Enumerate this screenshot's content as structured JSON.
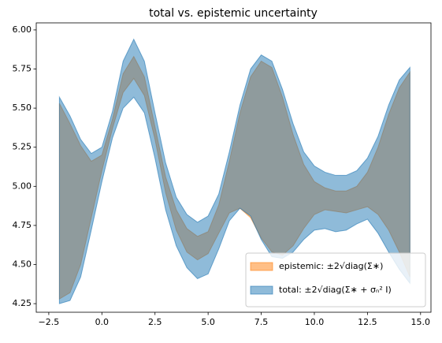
{
  "chart_data": {
    "type": "band",
    "title": "total vs. epistemic uncertainty",
    "x": [
      -2,
      -1.5,
      -1,
      -0.5,
      0,
      0.5,
      1,
      1.5,
      2,
      2.5,
      3,
      3.5,
      4,
      4.5,
      5,
      5.5,
      6,
      6.5,
      7,
      7.5,
      8,
      8.5,
      9,
      9.5,
      10,
      10.5,
      11,
      11.5,
      12,
      12.5,
      13,
      13.5,
      14,
      14.5
    ],
    "series": [
      {
        "name": "epistemic: ±2√diag(Σ∗)",
        "color": "#ff7f0e",
        "upper": [
          5.53,
          5.4,
          5.26,
          5.16,
          5.2,
          5.43,
          5.72,
          5.83,
          5.7,
          5.38,
          5.06,
          4.85,
          4.73,
          4.68,
          4.71,
          4.88,
          5.16,
          5.47,
          5.7,
          5.8,
          5.76,
          5.57,
          5.33,
          5.14,
          5.03,
          4.99,
          4.97,
          4.97,
          5.0,
          5.09,
          5.25,
          5.46,
          5.63,
          5.73
        ],
        "lower": [
          4.28,
          4.32,
          4.5,
          4.8,
          5.1,
          5.37,
          5.6,
          5.69,
          5.58,
          5.3,
          4.96,
          4.72,
          4.58,
          4.53,
          4.57,
          4.7,
          4.83,
          4.86,
          4.8,
          4.67,
          4.58,
          4.56,
          4.62,
          4.73,
          4.82,
          4.85,
          4.84,
          4.83,
          4.85,
          4.87,
          4.82,
          4.72,
          4.58,
          4.42
        ]
      },
      {
        "name": "total: ±2√diag(Σ∗ + σₙ² I)",
        "color": "#1f77b4",
        "upper": [
          5.57,
          5.45,
          5.3,
          5.21,
          5.25,
          5.48,
          5.8,
          5.94,
          5.8,
          5.47,
          5.15,
          4.93,
          4.82,
          4.77,
          4.81,
          4.95,
          5.22,
          5.52,
          5.75,
          5.84,
          5.8,
          5.62,
          5.4,
          5.22,
          5.13,
          5.09,
          5.07,
          5.07,
          5.1,
          5.18,
          5.32,
          5.52,
          5.68,
          5.76
        ],
        "lower": [
          4.25,
          4.27,
          4.42,
          4.72,
          5.03,
          5.31,
          5.5,
          5.57,
          5.47,
          5.18,
          4.85,
          4.62,
          4.48,
          4.41,
          4.44,
          4.6,
          4.78,
          4.86,
          4.81,
          4.66,
          4.55,
          4.54,
          4.58,
          4.66,
          4.72,
          4.73,
          4.71,
          4.72,
          4.76,
          4.79,
          4.7,
          4.58,
          4.47,
          4.38
        ]
      }
    ],
    "xlim": [
      -3.09,
      15.49
    ],
    "xticks": [
      {
        "value": -2.5,
        "label": "−2.5"
      },
      {
        "value": 0,
        "label": "0.0"
      },
      2.5,
      {
        "value": 5,
        "label": "5.0"
      },
      7.5,
      {
        "value": 10,
        "label": "10.0"
      },
      12.5,
      {
        "value": 15,
        "label": "15.0"
      }
    ],
    "ylim": [
      4.195,
      6.045
    ],
    "yticks": [
      4.25,
      {
        "value": 4.5,
        "label": "4.50"
      },
      4.75,
      {
        "value": 5,
        "label": "5.00"
      },
      5.25,
      {
        "value": 5.5,
        "label": "5.50"
      },
      5.75,
      {
        "value": 6,
        "label": "6.00"
      }
    ],
    "legend": "lower right"
  }
}
